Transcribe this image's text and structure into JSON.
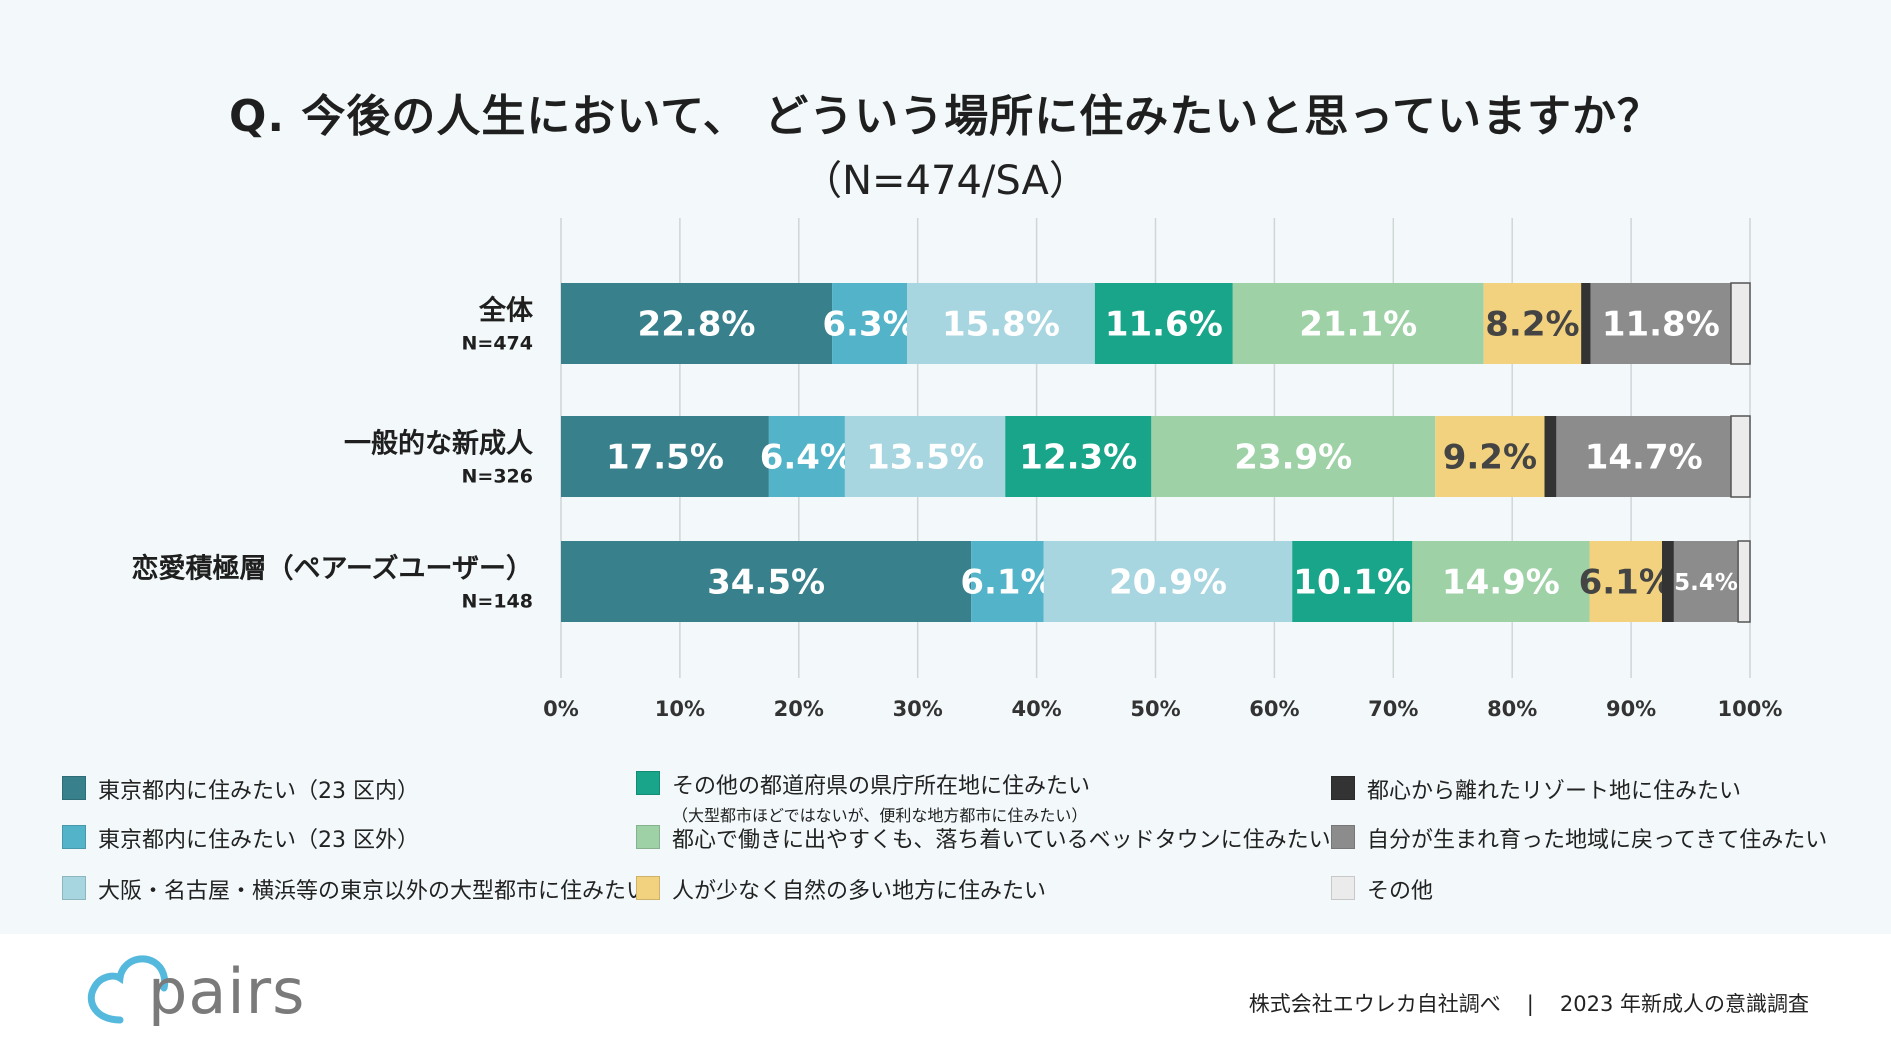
{
  "title": "Q. 今後の人生において、 どういう場所に住みたいと思っていますか？",
  "subtitle": "（N=474/SA）",
  "chart_data": {
    "type": "bar",
    "orientation": "horizontal-stacked-100",
    "xlim": [
      0,
      100
    ],
    "x_ticks": [
      "0%",
      "10%",
      "20%",
      "30%",
      "40%",
      "50%",
      "60%",
      "70%",
      "80%",
      "90%",
      "100%"
    ],
    "rows": [
      {
        "label": "全体",
        "n": "N=474"
      },
      {
        "label": "一般的な新成人",
        "n": "N=326"
      },
      {
        "label": "恋愛積極層（ペアーズユーザー）",
        "n": "N=148"
      }
    ],
    "series": [
      {
        "name": "東京都内に住みたい（23 区内）",
        "color": "#37808c",
        "text_color": "#ffffff",
        "values": [
          22.8,
          17.5,
          34.5
        ],
        "labels": [
          "22.8%",
          "17.5%",
          "34.5%"
        ]
      },
      {
        "name": "東京都内に住みたい（23 区外）",
        "color": "#53b3c8",
        "text_color": "#ffffff",
        "values": [
          6.3,
          6.4,
          6.1
        ],
        "labels": [
          "6.3%",
          "6.4%",
          "6.1%"
        ]
      },
      {
        "name": "大阪・名古屋・横浜等の東京以外の大型都市に住みたい",
        "color": "#a8d6e0",
        "text_color": "#ffffff",
        "values": [
          15.8,
          13.5,
          20.9
        ],
        "labels": [
          "15.8%",
          "13.5%",
          "20.9%"
        ]
      },
      {
        "name": "その他の都道府県の県庁所在地に住みたい",
        "sub": "（大型都市ほどではないが、便利な地方都市に住みたい）",
        "color": "#18a58a",
        "text_color": "#ffffff",
        "values": [
          11.6,
          12.3,
          10.1
        ],
        "labels": [
          "11.6%",
          "12.3%",
          "10.1%"
        ]
      },
      {
        "name": "都心で働きに出やすくも、落ち着いているベッドタウンに住みたい",
        "color": "#9ed1a6",
        "text_color": "#ffffff",
        "values": [
          21.1,
          23.9,
          14.9
        ],
        "labels": [
          "21.1%",
          "23.9%",
          "14.9%"
        ]
      },
      {
        "name": "人が少なく自然の多い地方に住みたい",
        "color": "#f2d27e",
        "text_color": "#444444",
        "values": [
          8.2,
          9.2,
          6.1
        ],
        "labels": [
          "8.2%",
          "9.2%",
          "6.1%"
        ]
      },
      {
        "name": "都心から離れたリゾート地に住みたい",
        "color": "#333333",
        "text_color": "#ffffff",
        "values": [
          0.8,
          1.0,
          1.0
        ],
        "labels": [
          "",
          "",
          ""
        ]
      },
      {
        "name": "自分が生まれ育った地域に戻ってきて住みたい",
        "color": "#8c8c8c",
        "text_color": "#ffffff",
        "values": [
          11.8,
          14.7,
          5.4
        ],
        "labels": [
          "11.8%",
          "14.7%",
          "5.4%"
        ]
      },
      {
        "name": "その他",
        "color": "#ebebeb",
        "text_color": "#444444",
        "values": [
          1.6,
          1.6,
          1.0
        ],
        "labels": [
          "",
          "",
          ""
        ]
      }
    ]
  },
  "logo": {
    "text": "pairs",
    "color": "#55b9dd"
  },
  "source": {
    "left": "株式会社エウレカ自社調べ",
    "separator": "|",
    "right": "2023 年新成人の意識調査"
  }
}
